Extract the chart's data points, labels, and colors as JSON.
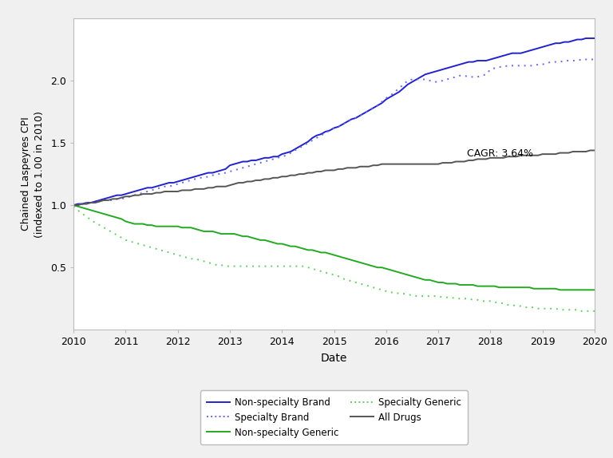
{
  "title": "",
  "xlabel": "Date",
  "ylabel": "Chained Laspeyres CPI\n(indexed to 1.00 in 2010)",
  "xlim": [
    2010,
    2020
  ],
  "ylim": [
    0.0,
    2.5
  ],
  "yticks": [
    0.5,
    1.0,
    1.5,
    2.0
  ],
  "xticks": [
    2010,
    2011,
    2012,
    2013,
    2014,
    2015,
    2016,
    2017,
    2018,
    2019,
    2020
  ],
  "cagr_label": "CAGR: 3.64%",
  "cagr_x": 2017.55,
  "cagr_y": 1.415,
  "colors": {
    "non_specialty_brand": "#2222cc",
    "specialty_brand": "#6666ee",
    "non_specialty_generic": "#22aa22",
    "specialty_generic": "#66cc66",
    "all_drugs": "#555555"
  },
  "non_specialty_brand_y": [
    1.0,
    1.01,
    1.01,
    1.02,
    1.02,
    1.03,
    1.04,
    1.05,
    1.06,
    1.07,
    1.08,
    1.08,
    1.09,
    1.1,
    1.11,
    1.12,
    1.13,
    1.14,
    1.14,
    1.15,
    1.16,
    1.17,
    1.18,
    1.18,
    1.19,
    1.2,
    1.21,
    1.22,
    1.23,
    1.24,
    1.25,
    1.26,
    1.26,
    1.27,
    1.28,
    1.29,
    1.32,
    1.33,
    1.34,
    1.35,
    1.35,
    1.36,
    1.36,
    1.37,
    1.38,
    1.38,
    1.39,
    1.39,
    1.41,
    1.42,
    1.43,
    1.45,
    1.47,
    1.49,
    1.51,
    1.54,
    1.56,
    1.57,
    1.59,
    1.6,
    1.62,
    1.63,
    1.65,
    1.67,
    1.69,
    1.7,
    1.72,
    1.74,
    1.76,
    1.78,
    1.8,
    1.82,
    1.85,
    1.87,
    1.89,
    1.91,
    1.94,
    1.97,
    1.99,
    2.01,
    2.03,
    2.05,
    2.06,
    2.07,
    2.08,
    2.09,
    2.1,
    2.11,
    2.12,
    2.13,
    2.14,
    2.15,
    2.15,
    2.16,
    2.16,
    2.16,
    2.17,
    2.18,
    2.19,
    2.2,
    2.21,
    2.22,
    2.22,
    2.22,
    2.23,
    2.24,
    2.25,
    2.26,
    2.27,
    2.28,
    2.29,
    2.3,
    2.3,
    2.31,
    2.31,
    2.32,
    2.33,
    2.33,
    2.34,
    2.34,
    2.34
  ],
  "specialty_brand_y": [
    1.0,
    1.01,
    1.01,
    1.02,
    1.02,
    1.03,
    1.03,
    1.04,
    1.04,
    1.04,
    1.05,
    1.05,
    1.06,
    1.07,
    1.08,
    1.09,
    1.1,
    1.11,
    1.12,
    1.13,
    1.14,
    1.15,
    1.15,
    1.16,
    1.17,
    1.18,
    1.19,
    1.2,
    1.21,
    1.22,
    1.22,
    1.23,
    1.24,
    1.25,
    1.25,
    1.26,
    1.27,
    1.28,
    1.29,
    1.3,
    1.31,
    1.32,
    1.33,
    1.34,
    1.35,
    1.36,
    1.37,
    1.38,
    1.39,
    1.4,
    1.42,
    1.44,
    1.46,
    1.48,
    1.5,
    1.52,
    1.54,
    1.56,
    1.58,
    1.6,
    1.62,
    1.63,
    1.65,
    1.67,
    1.69,
    1.7,
    1.72,
    1.74,
    1.76,
    1.78,
    1.8,
    1.83,
    1.86,
    1.88,
    1.91,
    1.94,
    1.97,
    2.0,
    2.01,
    2.01,
    2.01,
    2.01,
    2.0,
    1.99,
    1.99,
    2.0,
    2.01,
    2.02,
    2.03,
    2.04,
    2.04,
    2.03,
    2.03,
    2.03,
    2.04,
    2.05,
    2.09,
    2.1,
    2.11,
    2.11,
    2.12,
    2.12,
    2.12,
    2.12,
    2.12,
    2.12,
    2.12,
    2.13,
    2.13,
    2.14,
    2.15,
    2.15,
    2.15,
    2.16,
    2.16,
    2.16,
    2.16,
    2.17,
    2.17,
    2.17,
    2.17
  ],
  "non_specialty_generic_y": [
    1.0,
    0.99,
    0.98,
    0.97,
    0.96,
    0.95,
    0.94,
    0.93,
    0.92,
    0.91,
    0.9,
    0.89,
    0.87,
    0.86,
    0.85,
    0.85,
    0.85,
    0.84,
    0.84,
    0.83,
    0.83,
    0.83,
    0.83,
    0.83,
    0.83,
    0.82,
    0.82,
    0.82,
    0.81,
    0.8,
    0.79,
    0.79,
    0.79,
    0.78,
    0.77,
    0.77,
    0.77,
    0.77,
    0.76,
    0.75,
    0.75,
    0.74,
    0.73,
    0.72,
    0.72,
    0.71,
    0.7,
    0.69,
    0.69,
    0.68,
    0.67,
    0.67,
    0.66,
    0.65,
    0.64,
    0.64,
    0.63,
    0.62,
    0.62,
    0.61,
    0.6,
    0.59,
    0.58,
    0.57,
    0.56,
    0.55,
    0.54,
    0.53,
    0.52,
    0.51,
    0.5,
    0.5,
    0.49,
    0.48,
    0.47,
    0.46,
    0.45,
    0.44,
    0.43,
    0.42,
    0.41,
    0.4,
    0.4,
    0.39,
    0.38,
    0.38,
    0.37,
    0.37,
    0.37,
    0.36,
    0.36,
    0.36,
    0.36,
    0.35,
    0.35,
    0.35,
    0.35,
    0.35,
    0.34,
    0.34,
    0.34,
    0.34,
    0.34,
    0.34,
    0.34,
    0.34,
    0.33,
    0.33,
    0.33,
    0.33,
    0.33,
    0.33,
    0.32,
    0.32,
    0.32,
    0.32,
    0.32,
    0.32,
    0.32,
    0.32,
    0.32
  ],
  "specialty_generic_y": [
    0.99,
    0.96,
    0.93,
    0.91,
    0.88,
    0.86,
    0.84,
    0.82,
    0.8,
    0.78,
    0.76,
    0.74,
    0.72,
    0.71,
    0.7,
    0.69,
    0.68,
    0.67,
    0.66,
    0.65,
    0.64,
    0.63,
    0.62,
    0.61,
    0.6,
    0.59,
    0.58,
    0.57,
    0.57,
    0.56,
    0.55,
    0.54,
    0.53,
    0.52,
    0.52,
    0.51,
    0.51,
    0.51,
    0.51,
    0.51,
    0.51,
    0.51,
    0.51,
    0.51,
    0.51,
    0.51,
    0.51,
    0.51,
    0.51,
    0.51,
    0.51,
    0.51,
    0.51,
    0.51,
    0.5,
    0.49,
    0.48,
    0.47,
    0.46,
    0.45,
    0.44,
    0.43,
    0.41,
    0.4,
    0.39,
    0.38,
    0.37,
    0.36,
    0.35,
    0.34,
    0.33,
    0.32,
    0.31,
    0.3,
    0.3,
    0.29,
    0.29,
    0.28,
    0.28,
    0.27,
    0.27,
    0.27,
    0.27,
    0.27,
    0.27,
    0.26,
    0.26,
    0.26,
    0.25,
    0.25,
    0.25,
    0.25,
    0.24,
    0.24,
    0.23,
    0.23,
    0.23,
    0.22,
    0.22,
    0.21,
    0.2,
    0.2,
    0.19,
    0.19,
    0.18,
    0.18,
    0.18,
    0.17,
    0.17,
    0.17,
    0.17,
    0.17,
    0.16,
    0.16,
    0.16,
    0.16,
    0.16,
    0.15,
    0.15,
    0.15,
    0.15
  ],
  "all_drugs_y": [
    1.0,
    1.0,
    1.01,
    1.01,
    1.02,
    1.02,
    1.03,
    1.04,
    1.04,
    1.05,
    1.05,
    1.06,
    1.07,
    1.07,
    1.08,
    1.08,
    1.09,
    1.09,
    1.09,
    1.1,
    1.1,
    1.11,
    1.11,
    1.11,
    1.11,
    1.12,
    1.12,
    1.12,
    1.13,
    1.13,
    1.13,
    1.14,
    1.14,
    1.15,
    1.15,
    1.15,
    1.16,
    1.17,
    1.18,
    1.18,
    1.19,
    1.19,
    1.2,
    1.2,
    1.21,
    1.21,
    1.22,
    1.22,
    1.23,
    1.23,
    1.24,
    1.24,
    1.25,
    1.25,
    1.26,
    1.26,
    1.27,
    1.27,
    1.28,
    1.28,
    1.28,
    1.29,
    1.29,
    1.3,
    1.3,
    1.3,
    1.31,
    1.31,
    1.31,
    1.32,
    1.32,
    1.33,
    1.33,
    1.33,
    1.33,
    1.33,
    1.33,
    1.33,
    1.33,
    1.33,
    1.33,
    1.33,
    1.33,
    1.33,
    1.33,
    1.34,
    1.34,
    1.34,
    1.35,
    1.35,
    1.35,
    1.36,
    1.36,
    1.37,
    1.37,
    1.37,
    1.38,
    1.38,
    1.38,
    1.38,
    1.39,
    1.39,
    1.39,
    1.4,
    1.4,
    1.4,
    1.4,
    1.4,
    1.41,
    1.41,
    1.41,
    1.41,
    1.42,
    1.42,
    1.42,
    1.43,
    1.43,
    1.43,
    1.43,
    1.44,
    1.44
  ],
  "background_color": "#f0f0f0",
  "plot_bg_color": "#ffffff",
  "legend_fontsize": 8.5,
  "axis_fontsize": 10,
  "tick_fontsize": 9,
  "legend_entries": [
    [
      "Non-specialty Brand",
      "solid",
      "non_specialty_brand"
    ],
    [
      "Specialty Brand",
      "dotted",
      "specialty_brand"
    ],
    [
      "Non-specialty Generic",
      "solid",
      "non_specialty_generic"
    ],
    [
      "Specialty Generic",
      "dotted",
      "specialty_generic"
    ],
    [
      "All Drugs",
      "solid",
      "all_drugs"
    ]
  ]
}
